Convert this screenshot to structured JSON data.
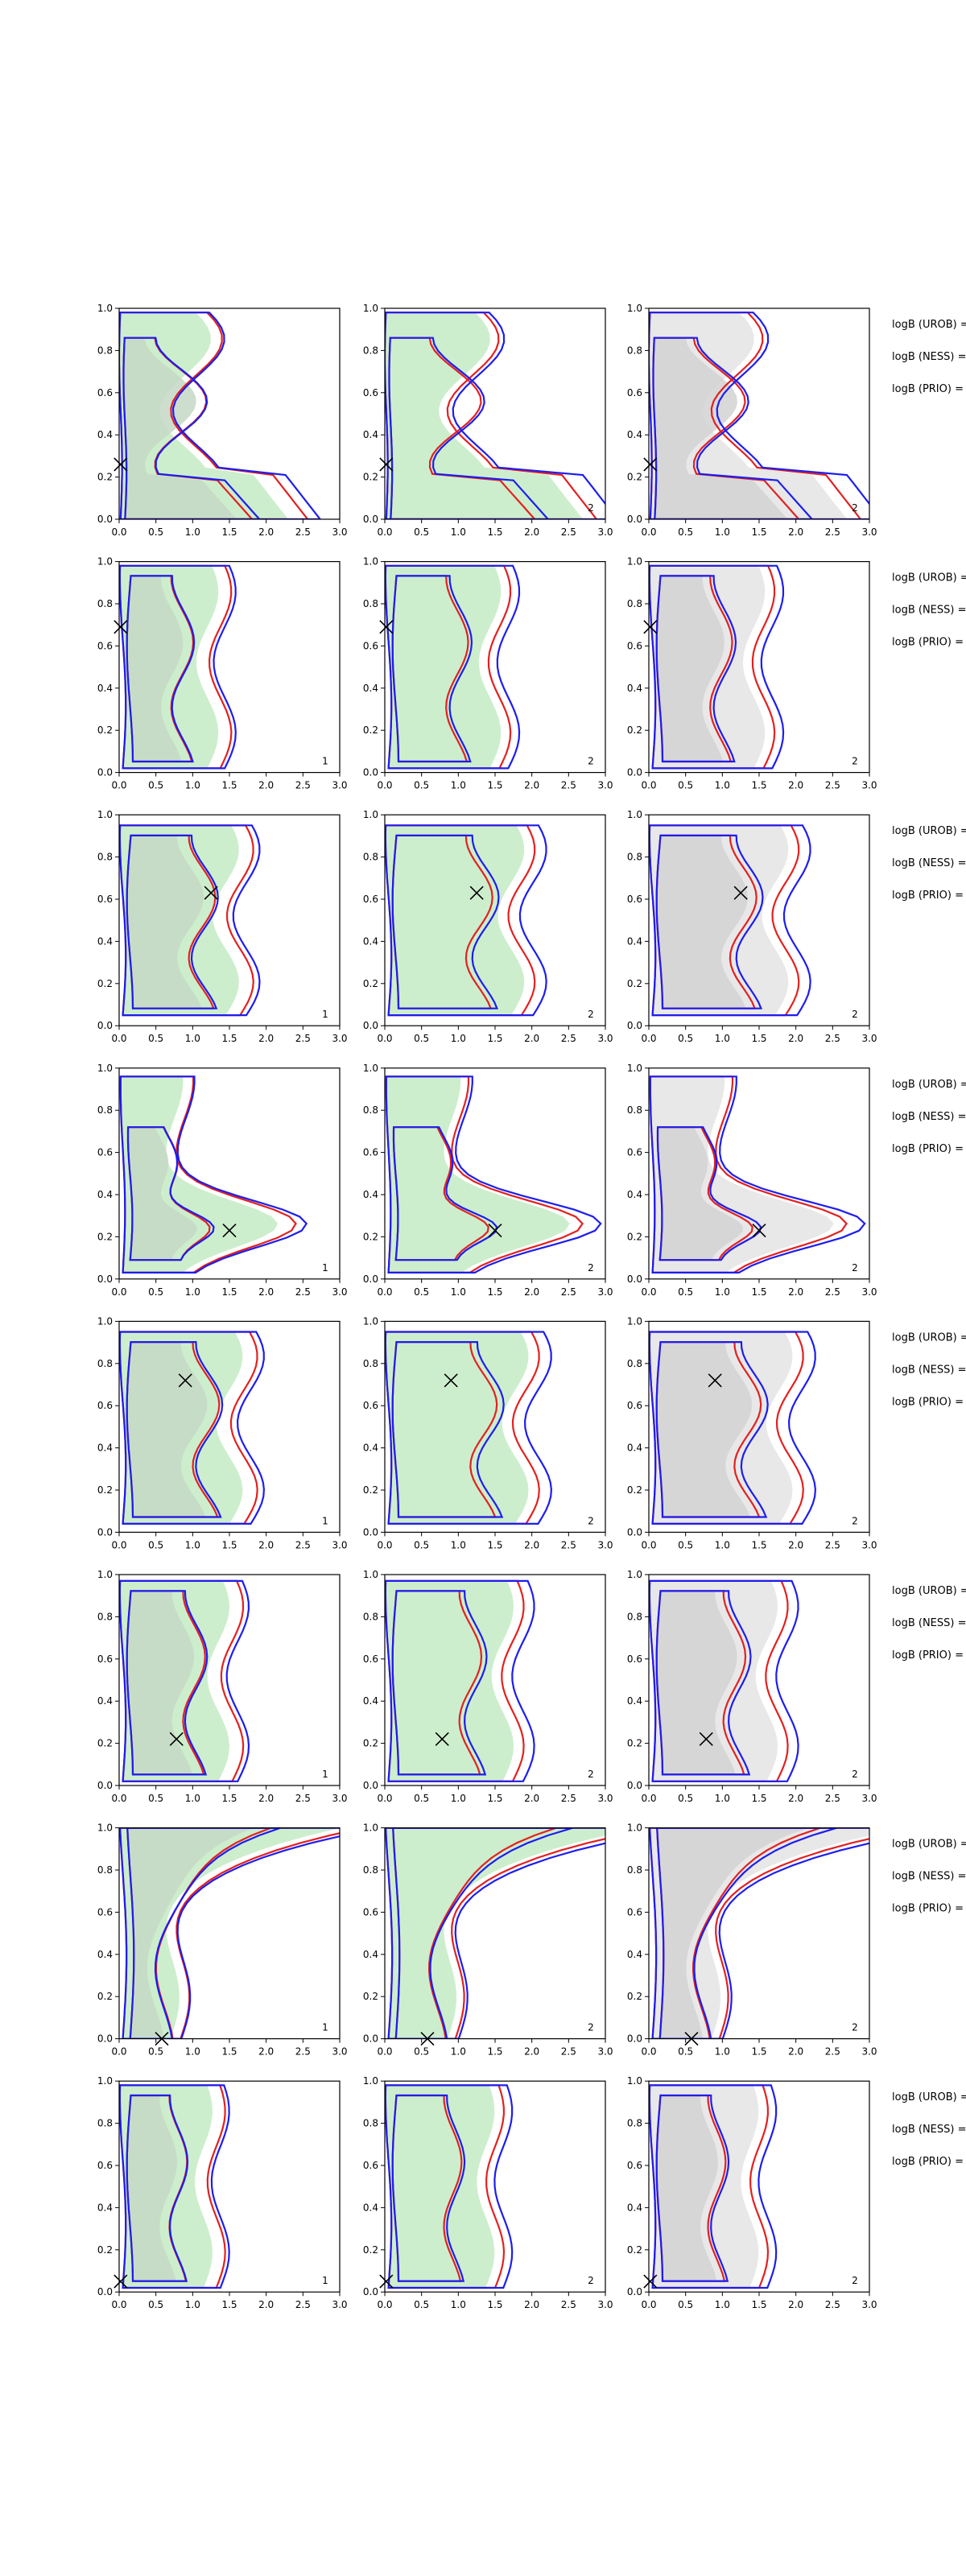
{
  "chart_data": {
    "type": "contour-grid",
    "title": "",
    "xlim": [
      0,
      3
    ],
    "ylim": [
      0,
      1
    ],
    "xticks": [
      "0.0",
      "0.5",
      "1.0",
      "1.5",
      "2.0",
      "2.5",
      "3.0"
    ],
    "yticks": [
      "0.0",
      "0.2",
      "0.4",
      "0.6",
      "0.8",
      "1.0"
    ],
    "grid": false,
    "colors": {
      "green_fill_outer": "#cdeecd",
      "green_fill_inner": "#a9e4a9",
      "grey_fill_outer": "#e8e8e8",
      "grey_fill_inner": "#d2d2d2",
      "red_contour": "#e32020",
      "blue_contour": "#1d1df0",
      "marker": "#000000"
    },
    "side_labels": [
      "logB (UROB) =",
      "logB (NESS) =",
      "logB (PRIO) ="
    ],
    "rows": [
      {
        "marker": [
          0.02,
          0.26
        ],
        "corner_labels": [
          "",
          "2",
          "2"
        ],
        "shape": "L"
      },
      {
        "marker": [
          0.02,
          0.69
        ],
        "corner_labels": [
          "1",
          "2",
          "2"
        ],
        "shape": "tall-narrow"
      },
      {
        "marker": [
          1.25,
          0.63
        ],
        "corner_labels": [
          "1",
          "2",
          "2"
        ],
        "shape": "tall-mid"
      },
      {
        "marker": [
          1.5,
          0.23
        ],
        "corner_labels": [
          "1",
          "2",
          "2"
        ],
        "shape": "wide-low"
      },
      {
        "marker": [
          0.9,
          0.72
        ],
        "corner_labels": [
          "1",
          "2",
          "2"
        ],
        "shape": "tall-mid-upper"
      },
      {
        "marker": [
          0.78,
          0.22
        ],
        "corner_labels": [
          "1",
          "2",
          "2"
        ],
        "shape": "tall-mid-lower"
      },
      {
        "marker": [
          0.58,
          0.0
        ],
        "corner_labels": [
          "1",
          "2",
          "2"
        ],
        "shape": "top-spread"
      },
      {
        "marker": [
          0.02,
          0.05
        ],
        "corner_labels": [
          "1",
          "2",
          "2"
        ],
        "shape": "tall-narrow-left"
      }
    ]
  }
}
